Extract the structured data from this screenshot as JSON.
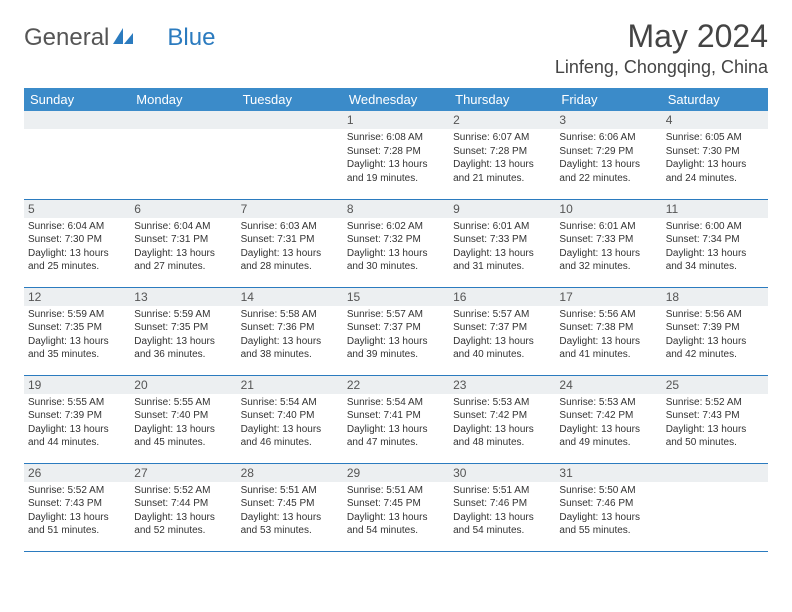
{
  "logo": {
    "part1": "General",
    "part2": "Blue"
  },
  "title": "May 2024",
  "location": "Linfeng, Chongqing, China",
  "colors": {
    "header_bg": "#3b8bc9",
    "header_text": "#ffffff",
    "daybar_bg": "#eceff1",
    "border": "#2b7bbf",
    "text": "#333333",
    "logo_blue": "#2b7bbf",
    "logo_gray": "#555555"
  },
  "weekdays": [
    "Sunday",
    "Monday",
    "Tuesday",
    "Wednesday",
    "Thursday",
    "Friday",
    "Saturday"
  ],
  "weeks": [
    [
      null,
      null,
      null,
      {
        "n": "1",
        "sr": "6:08 AM",
        "ss": "7:28 PM",
        "dl": "13 hours and 19 minutes."
      },
      {
        "n": "2",
        "sr": "6:07 AM",
        "ss": "7:28 PM",
        "dl": "13 hours and 21 minutes."
      },
      {
        "n": "3",
        "sr": "6:06 AM",
        "ss": "7:29 PM",
        "dl": "13 hours and 22 minutes."
      },
      {
        "n": "4",
        "sr": "6:05 AM",
        "ss": "7:30 PM",
        "dl": "13 hours and 24 minutes."
      }
    ],
    [
      {
        "n": "5",
        "sr": "6:04 AM",
        "ss": "7:30 PM",
        "dl": "13 hours and 25 minutes."
      },
      {
        "n": "6",
        "sr": "6:04 AM",
        "ss": "7:31 PM",
        "dl": "13 hours and 27 minutes."
      },
      {
        "n": "7",
        "sr": "6:03 AM",
        "ss": "7:31 PM",
        "dl": "13 hours and 28 minutes."
      },
      {
        "n": "8",
        "sr": "6:02 AM",
        "ss": "7:32 PM",
        "dl": "13 hours and 30 minutes."
      },
      {
        "n": "9",
        "sr": "6:01 AM",
        "ss": "7:33 PM",
        "dl": "13 hours and 31 minutes."
      },
      {
        "n": "10",
        "sr": "6:01 AM",
        "ss": "7:33 PM",
        "dl": "13 hours and 32 minutes."
      },
      {
        "n": "11",
        "sr": "6:00 AM",
        "ss": "7:34 PM",
        "dl": "13 hours and 34 minutes."
      }
    ],
    [
      {
        "n": "12",
        "sr": "5:59 AM",
        "ss": "7:35 PM",
        "dl": "13 hours and 35 minutes."
      },
      {
        "n": "13",
        "sr": "5:59 AM",
        "ss": "7:35 PM",
        "dl": "13 hours and 36 minutes."
      },
      {
        "n": "14",
        "sr": "5:58 AM",
        "ss": "7:36 PM",
        "dl": "13 hours and 38 minutes."
      },
      {
        "n": "15",
        "sr": "5:57 AM",
        "ss": "7:37 PM",
        "dl": "13 hours and 39 minutes."
      },
      {
        "n": "16",
        "sr": "5:57 AM",
        "ss": "7:37 PM",
        "dl": "13 hours and 40 minutes."
      },
      {
        "n": "17",
        "sr": "5:56 AM",
        "ss": "7:38 PM",
        "dl": "13 hours and 41 minutes."
      },
      {
        "n": "18",
        "sr": "5:56 AM",
        "ss": "7:39 PM",
        "dl": "13 hours and 42 minutes."
      }
    ],
    [
      {
        "n": "19",
        "sr": "5:55 AM",
        "ss": "7:39 PM",
        "dl": "13 hours and 44 minutes."
      },
      {
        "n": "20",
        "sr": "5:55 AM",
        "ss": "7:40 PM",
        "dl": "13 hours and 45 minutes."
      },
      {
        "n": "21",
        "sr": "5:54 AM",
        "ss": "7:40 PM",
        "dl": "13 hours and 46 minutes."
      },
      {
        "n": "22",
        "sr": "5:54 AM",
        "ss": "7:41 PM",
        "dl": "13 hours and 47 minutes."
      },
      {
        "n": "23",
        "sr": "5:53 AM",
        "ss": "7:42 PM",
        "dl": "13 hours and 48 minutes."
      },
      {
        "n": "24",
        "sr": "5:53 AM",
        "ss": "7:42 PM",
        "dl": "13 hours and 49 minutes."
      },
      {
        "n": "25",
        "sr": "5:52 AM",
        "ss": "7:43 PM",
        "dl": "13 hours and 50 minutes."
      }
    ],
    [
      {
        "n": "26",
        "sr": "5:52 AM",
        "ss": "7:43 PM",
        "dl": "13 hours and 51 minutes."
      },
      {
        "n": "27",
        "sr": "5:52 AM",
        "ss": "7:44 PM",
        "dl": "13 hours and 52 minutes."
      },
      {
        "n": "28",
        "sr": "5:51 AM",
        "ss": "7:45 PM",
        "dl": "13 hours and 53 minutes."
      },
      {
        "n": "29",
        "sr": "5:51 AM",
        "ss": "7:45 PM",
        "dl": "13 hours and 54 minutes."
      },
      {
        "n": "30",
        "sr": "5:51 AM",
        "ss": "7:46 PM",
        "dl": "13 hours and 54 minutes."
      },
      {
        "n": "31",
        "sr": "5:50 AM",
        "ss": "7:46 PM",
        "dl": "13 hours and 55 minutes."
      },
      null
    ]
  ],
  "labels": {
    "sunrise": "Sunrise:",
    "sunset": "Sunset:",
    "daylight": "Daylight:"
  }
}
